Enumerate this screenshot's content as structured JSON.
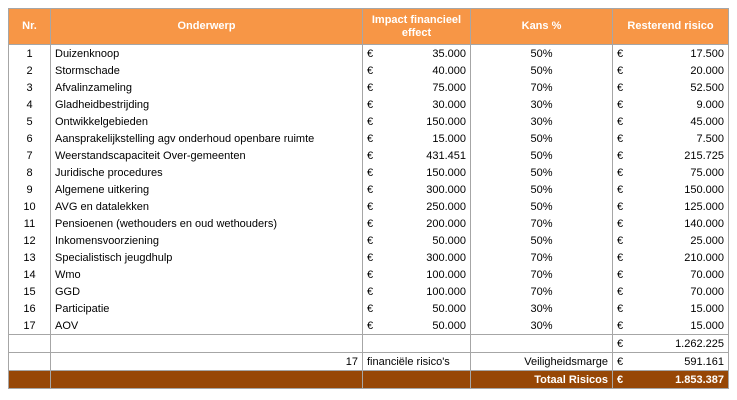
{
  "table": {
    "header": [
      "Nr.",
      "Onderwerp",
      "Impact financieel effect",
      "Kans %",
      "Resterend risico"
    ],
    "currency": "€",
    "rows": [
      [
        "1",
        "Duizenknoop",
        "35.000",
        "50%",
        "17.500"
      ],
      [
        "2",
        "Stormschade",
        "40.000",
        "50%",
        "20.000"
      ],
      [
        "3",
        "Afvalinzameling",
        "75.000",
        "70%",
        "52.500"
      ],
      [
        "4",
        "Gladheidbestrijding",
        "30.000",
        "30%",
        "9.000"
      ],
      [
        "5",
        "Ontwikkelgebieden",
        "150.000",
        "30%",
        "45.000"
      ],
      [
        "6",
        "Aansprakelijkstelling agv onderhoud openbare ruimte",
        "15.000",
        "50%",
        "7.500"
      ],
      [
        "7",
        "Weerstandscapaciteit Over-gemeenten",
        "431.451",
        "50%",
        "215.725"
      ],
      [
        "8",
        "Juridische procedures",
        "150.000",
        "50%",
        "75.000"
      ],
      [
        "9",
        "Algemene uitkering",
        "300.000",
        "50%",
        "150.000"
      ],
      [
        "10",
        "AVG en datalekken",
        "250.000",
        "50%",
        "125.000"
      ],
      [
        "11",
        "Pensioenen (wethouders en oud wethouders)",
        "200.000",
        "70%",
        "140.000"
      ],
      [
        "12",
        "Inkomensvoorziening",
        "50.000",
        "50%",
        "25.000"
      ],
      [
        "13",
        "Specialistisch jeugdhulp",
        "300.000",
        "70%",
        "210.000"
      ],
      [
        "14",
        "Wmo",
        "100.000",
        "70%",
        "70.000"
      ],
      [
        "15",
        "GGD",
        "100.000",
        "70%",
        "70.000"
      ],
      [
        "16",
        "Participatie",
        "50.000",
        "30%",
        "15.000"
      ],
      [
        "17",
        "AOV",
        "50.000",
        "30%",
        "15.000"
      ]
    ],
    "subtotal": "1.262.225",
    "count": "17",
    "count_label": "financiële risico's",
    "margin_label": "Veiligheidsmarge",
    "margin": "591.161",
    "total_label": "Totaal Risicos",
    "total": "1.853.387"
  }
}
